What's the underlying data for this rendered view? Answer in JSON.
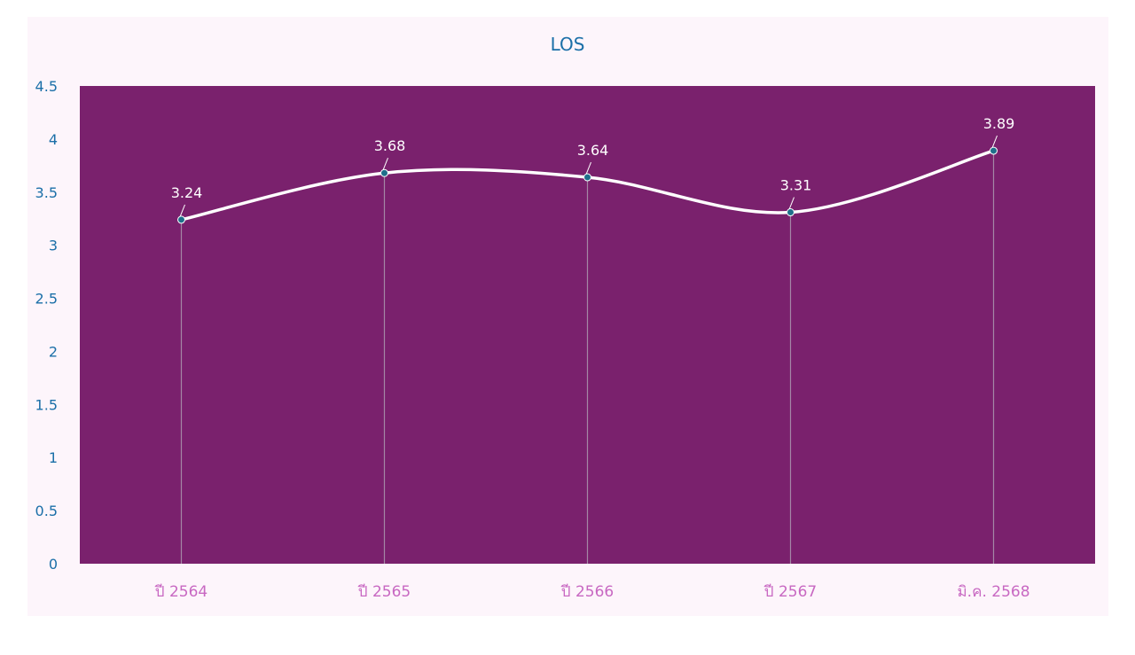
{
  "chart_data": {
    "type": "line",
    "title": "LOS",
    "xlabel": "",
    "ylabel": "",
    "categories": [
      "ปี 2564",
      "ปี 2565",
      "ปี 2566",
      "ปี 2567",
      "มิ.ค. 2568"
    ],
    "series": [
      {
        "values": [
          3.24,
          3.68,
          3.64,
          3.31,
          3.89
        ],
        "labels": [
          "3.24",
          "3.68",
          "3.64",
          "3.31",
          "3.89"
        ]
      }
    ],
    "ylim": [
      0,
      4.5
    ],
    "yticks": [
      "0",
      "0.5",
      "1",
      "1.5",
      "2",
      "2.5",
      "3",
      "3.5",
      "4",
      "4.5"
    ],
    "smooth": true,
    "drop_lines": true,
    "grid": false,
    "legend": "none",
    "colors": {
      "card_background": "#fdf5fb",
      "plot_background": "#7a216d",
      "line": "#ffffff",
      "marker": "#1f6f8b",
      "drop_line": "#a487a6",
      "title": "#1b6fa8",
      "y_tick": "#1b6fa8",
      "x_tick": "#c868c2",
      "data_label": "#ffffff"
    }
  }
}
